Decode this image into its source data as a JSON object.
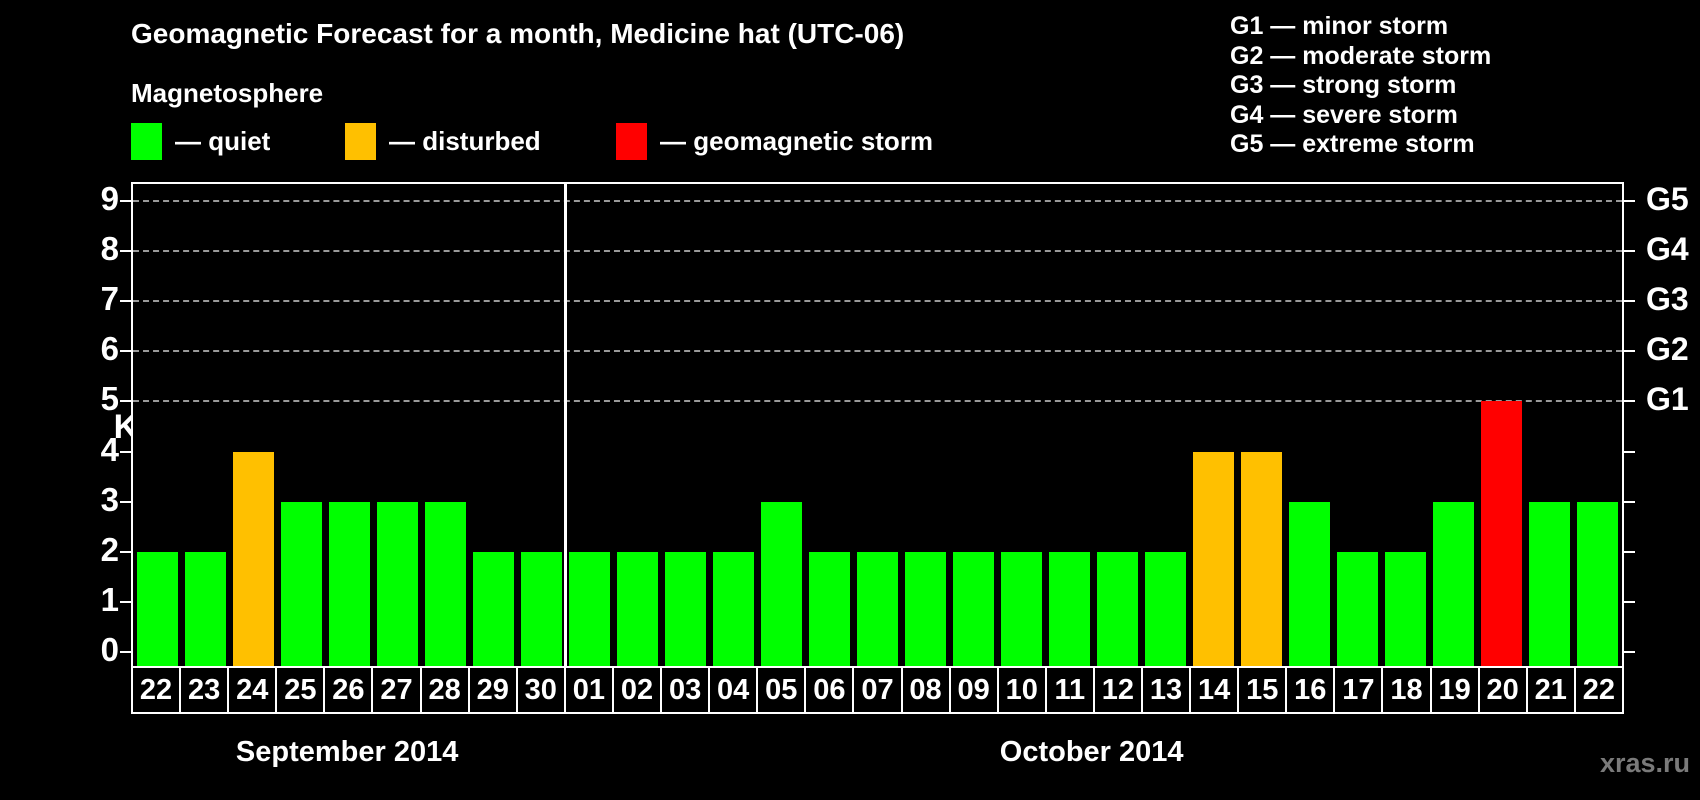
{
  "title": "Geomagnetic Forecast for a month, Medicine hat (UTC-06)",
  "subtitle": "Magnetosphere",
  "legend": {
    "items": [
      {
        "key": "quiet",
        "label": "— quiet",
        "color": "#00ff00",
        "x": 0
      },
      {
        "key": "disturbed",
        "label": "— disturbed",
        "color": "#ffc000",
        "x": 214
      },
      {
        "key": "storm",
        "label": "— geomagnetic storm",
        "color": "#ff0000",
        "x": 485
      }
    ]
  },
  "g_legend": [
    "G1 — minor storm",
    "G2 — moderate storm",
    "G3 — strong storm",
    "G4 — severe storm",
    "G5 — extreme storm"
  ],
  "watermark": "xras.ru",
  "chart_data": {
    "type": "bar",
    "title": "Geomagnetic Forecast for a month, Medicine hat (UTC-06)",
    "ylabel": "Kp",
    "ylim": [
      0,
      9
    ],
    "yticks": [
      0,
      1,
      2,
      3,
      4,
      5,
      6,
      7,
      8,
      9
    ],
    "gridlines_at": [
      5,
      6,
      7,
      8,
      9
    ],
    "grid": "dashed horizontal at storm levels only",
    "legend_position": "top",
    "right_axis": [
      {
        "kp": 5,
        "label": "G1"
      },
      {
        "kp": 6,
        "label": "G2"
      },
      {
        "kp": 7,
        "label": "G3"
      },
      {
        "kp": 8,
        "label": "G4"
      },
      {
        "kp": 9,
        "label": "G5"
      }
    ],
    "months": [
      {
        "label": "September 2014",
        "days": 9
      },
      {
        "label": "October 2014",
        "days": 22
      }
    ],
    "categories": [
      "22",
      "23",
      "24",
      "25",
      "26",
      "27",
      "28",
      "29",
      "30",
      "01",
      "02",
      "03",
      "04",
      "05",
      "06",
      "07",
      "08",
      "09",
      "10",
      "11",
      "12",
      "13",
      "14",
      "15",
      "16",
      "17",
      "18",
      "19",
      "20",
      "21",
      "22"
    ],
    "values": [
      2,
      2,
      4,
      3,
      3,
      3,
      3,
      2,
      2,
      2,
      2,
      2,
      2,
      3,
      2,
      2,
      2,
      2,
      2,
      2,
      2,
      2,
      4,
      4,
      3,
      2,
      2,
      3,
      5,
      3,
      3
    ],
    "status": [
      "quiet",
      "quiet",
      "disturbed",
      "quiet",
      "quiet",
      "quiet",
      "quiet",
      "quiet",
      "quiet",
      "quiet",
      "quiet",
      "quiet",
      "quiet",
      "quiet",
      "quiet",
      "quiet",
      "quiet",
      "quiet",
      "quiet",
      "quiet",
      "quiet",
      "quiet",
      "disturbed",
      "disturbed",
      "quiet",
      "quiet",
      "quiet",
      "quiet",
      "storm",
      "quiet",
      "quiet"
    ],
    "colors": {
      "quiet": "#00ff00",
      "disturbed": "#ffc000",
      "storm": "#ff0000"
    }
  }
}
